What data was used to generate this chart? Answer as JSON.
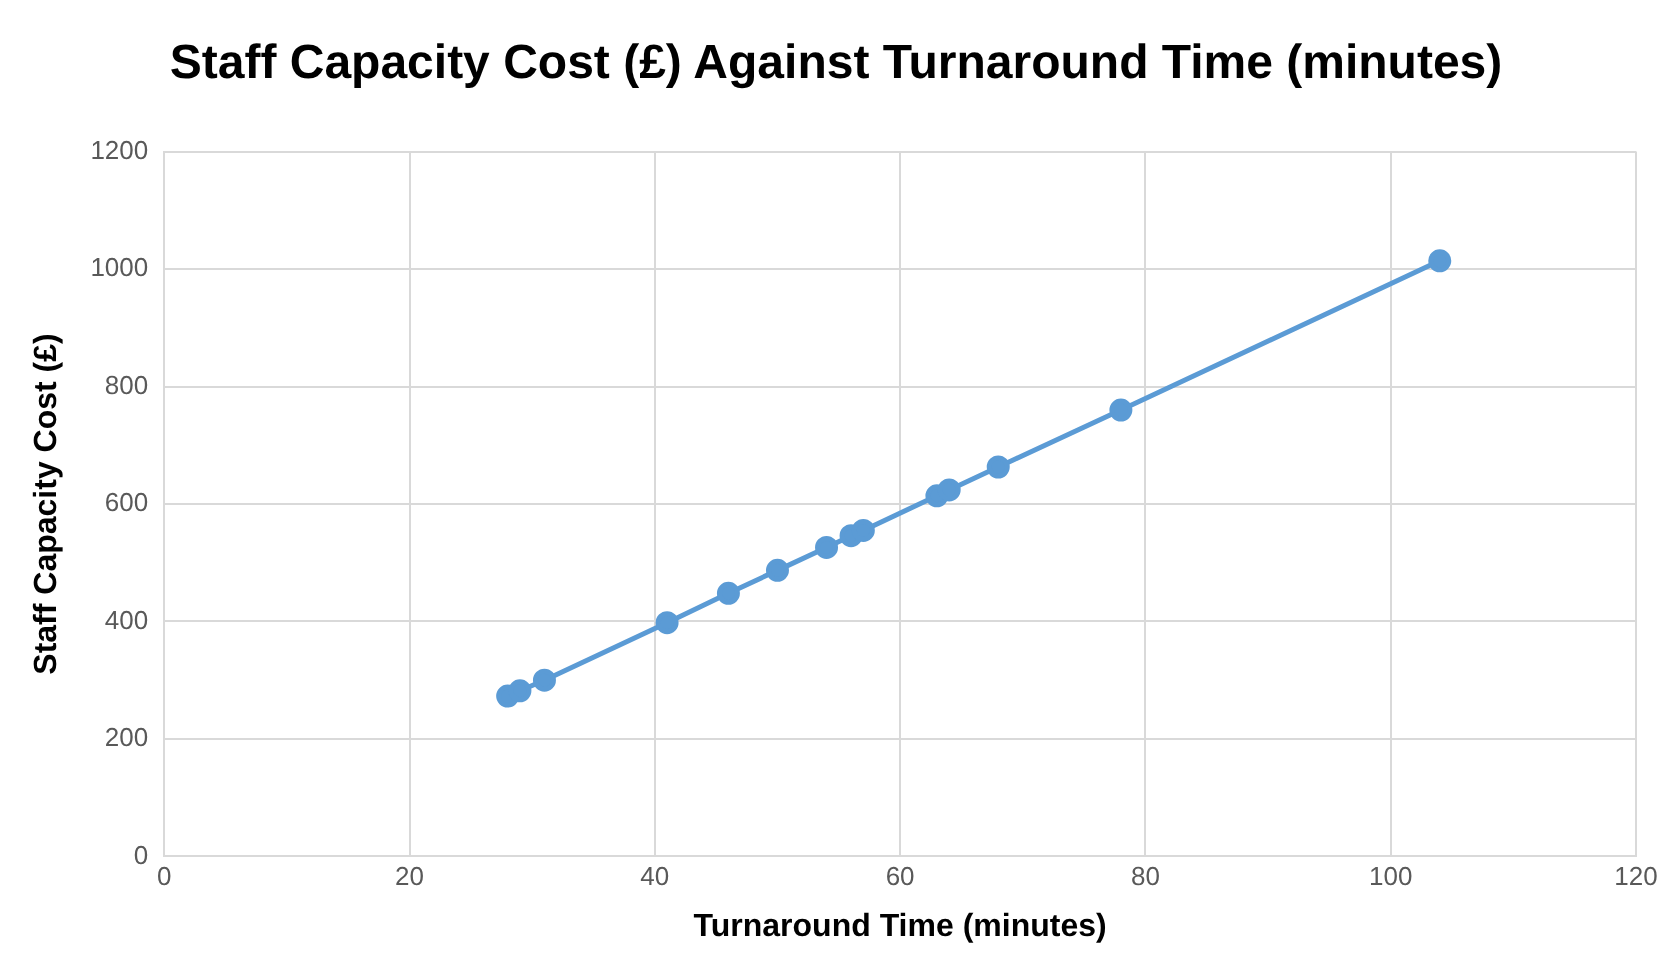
{
  "chart_data": {
    "type": "line",
    "title": "Staff Capacity Cost (£) Against Turnaround Time (minutes)",
    "xlabel": "Turnaround Time (minutes)",
    "ylabel": "Staff Capacity Cost (£)",
    "series": [
      {
        "color": "#5b9bd5",
        "x": [
          28,
          29,
          31,
          41,
          46,
          50,
          54,
          56,
          57,
          63,
          64,
          68,
          78,
          104
        ],
        "values": [
          273,
          282,
          300,
          398,
          448,
          487,
          526,
          546,
          555,
          614,
          624,
          663,
          760,
          1014
        ]
      }
    ],
    "xlim": [
      0,
      120
    ],
    "xticks": [
      0,
      20,
      40,
      60,
      80,
      100,
      120
    ],
    "ylim": [
      0,
      1200
    ],
    "yticks": [
      0,
      200,
      400,
      600,
      800,
      1000,
      1200
    ],
    "grid": true,
    "legend": false,
    "marker": "circle",
    "line_style": "solid"
  }
}
